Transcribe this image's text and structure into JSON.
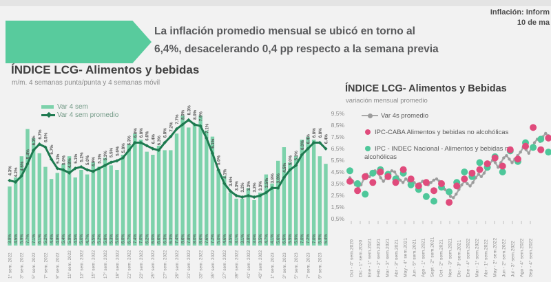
{
  "header": {
    "top_right_line1": "Inflación: Inform",
    "top_right_line2": "10 de ma"
  },
  "banner": {
    "headline_line1": "La inflación promedio mensual se ubicó en torno al",
    "headline_line2": "6,4%, desacelerando 0,4 pp respecto a la semana previa",
    "arrow_color": "#58cb9d"
  },
  "colors": {
    "background": "#f2f2f2",
    "mint_bar": "#7dd2ab",
    "dark_green_line": "#1e7a50",
    "gray_line": "#a9a9a9",
    "pink_dot": "#e04b7c",
    "green_dot": "#4ec79a"
  },
  "chart_data": [
    {
      "type": "bar",
      "title": "ÍNDICE LCG- Alimentos y bebidas",
      "subtitle": "m/m. 4 semanas punta/punta y 4 semanas móvil",
      "legend_position": "top-left",
      "grid": false,
      "ylim": [
        0,
        9
      ],
      "x_tick_every": 2,
      "x_tick_labels": [
        "1° sem. 2022",
        "3° sem. 2022",
        "5° sem. 2022",
        "7° sem. 2022",
        "9° sem. 2022",
        "11° sem. 2022",
        "13° sem. 2022",
        "15° sem. 2022",
        "17° sem. 2022",
        "19° sem. 2022",
        "21° sem. 2022",
        "23° sem. 2022",
        "25° sem. 2022",
        "27° sem. 2022",
        "29° sem. 2022",
        "31° sem. 2022",
        "33° sem. 2022",
        "35° sem. 2022",
        "37° sem. 2022",
        "39° sem. 2022",
        "41° sem. 2022",
        "43° sem. 2022",
        "1° sem. 2023",
        "3° sem. 2023",
        "5° sem. 2023",
        "7° sem. 2023",
        "9° sem. 2023"
      ],
      "series": [
        {
          "name": "Var 4 sem",
          "type": "bar",
          "color": "#7dd2ab",
          "values": [
            3.9,
            4.5,
            5.9,
            7.7,
            7.1,
            6.1,
            5.2,
            4.4,
            4.8,
            5.4,
            5.9,
            4.5,
            5.0,
            4.7,
            5.5,
            5.2,
            5.8,
            5.3,
            5.0,
            6.0,
            6.7,
            7.4,
            7.0,
            6.2,
            6.0,
            6.6,
            6.3,
            6.3,
            7.4,
            8.6,
            7.8,
            8.0,
            8.6,
            7.6,
            7.2,
            5.0,
            4.6,
            3.5,
            3.1,
            3.1,
            3.8,
            3.0,
            3.5,
            4.7,
            4.1,
            5.6,
            6.5,
            5.5,
            5.9,
            7.0,
            7.2,
            7.0,
            5.9,
            5.4
          ]
        },
        {
          "name": "Var 4 sem promedio",
          "type": "line",
          "color": "#1e7a50",
          "values": [
            4.3,
            4.2,
            4.6,
            5.4,
            6.3,
            6.7,
            6.5,
            5.7,
            5.1,
            5.0,
            4.8,
            5.1,
            5.2,
            5.0,
            4.9,
            5.1,
            5.3,
            5.5,
            5.6,
            5.8,
            6.3,
            6.8,
            6.8,
            6.6,
            6.4,
            6.3,
            6.8,
            7.2,
            7.7,
            8.0,
            8.3,
            8.0,
            7.9,
            7.1,
            6.1,
            5.0,
            4.1,
            3.6,
            3.3,
            3.2,
            3.3,
            3.2,
            3.3,
            3.5,
            3.8,
            3.8,
            4.5,
            5.0,
            5.3,
            6.0,
            6.4,
            6.8,
            6.8,
            6.4
          ]
        }
      ]
    },
    {
      "type": "scatter",
      "title": "ÍNDICE LCG- Alimentos y Bebidas",
      "subtitle": "variación mensual promedio",
      "legend_position": "top-left",
      "grid": false,
      "ylim": [
        0.5,
        9.5
      ],
      "y_ticks": [
        "9,5%",
        "8,5%",
        "7,5%",
        "6,5%",
        "5,5%",
        "4,5%",
        "3,5%",
        "2,5%",
        "1,5%",
        "0,5%"
      ],
      "x_tick_labels": [
        "Oct - 4° sem.2020",
        "Dic - 1° sem.2020",
        "Ene - 1° sem.2021",
        "Feb - 2° sem.2021",
        "Mar - 3° sem.2021",
        "Abr - 3° sem.2021",
        "May - 4° sem.2021",
        "Jun - 5° sem.2021",
        "Ago - 1° sem.2021",
        "Sept - 2° sem.2021",
        "Oct - 2° sem.2021",
        "Nov - 3° sem.2021",
        "Dic - 3° sem.2021",
        "Ene - 4° sem.2022",
        "Mar - 1° sem.2022",
        "Abr - 1° sem.2022",
        "May - 2° sem.2022",
        "Jun - 2° sem.2022",
        "Jul - 3° sem.2022",
        "Ago - 4° sem.2022",
        "Sep - 4° sem.2022"
      ],
      "series": [
        {
          "name": "Var 4s promedio",
          "type": "line",
          "color": "#a9a9a9",
          "values": [
            4.0,
            3.7,
            3.4,
            3.2,
            3.4,
            3.9,
            4.3,
            4.1,
            4.4,
            4.6,
            4.4,
            4.0,
            3.7,
            4.0,
            4.4,
            4.6,
            4.5,
            4.1,
            3.8,
            3.6,
            3.9,
            3.7,
            3.5,
            3.6,
            3.4,
            3.5,
            3.7,
            3.6,
            3.4,
            3.6,
            3.8,
            3.9,
            3.7,
            3.4,
            3.0,
            2.7,
            2.4,
            2.3,
            2.6,
            3.0,
            3.4,
            3.7,
            3.5,
            3.3,
            3.6,
            4.0,
            4.3,
            4.1,
            4.4,
            4.8,
            5.2,
            5.5,
            5.3,
            4.9,
            5.3,
            5.7,
            5.9,
            5.6,
            5.3,
            5.6,
            5.9,
            6.2,
            6.6,
            6.4,
            6.1,
            6.6,
            7.0,
            7.3,
            7.1,
            7.5,
            7.8,
            7.6
          ]
        },
        {
          "name": "IPC-CABA Alimentos y bebidas no alcohólicas",
          "type": "scatter",
          "color": "#e04b7c",
          "values": [
            3.7,
            2.9,
            4.1,
            3.6,
            4.5,
            4.1,
            3.6,
            4.7,
            3.9,
            3.3,
            3.6,
            2.9,
            3.5,
            1.9,
            3.3,
            3.9,
            4.4,
            4.7,
            5.2,
            5.7,
            5.0,
            6.4,
            5.6,
            6.7,
            8.3,
            6.4,
            7.4
          ]
        },
        {
          "name": "IPC - INDEC Nacional - Alimentos y bebidas no alcohólicas",
          "type": "scatter",
          "color": "#4ec79a",
          "values": [
            4.6,
            3.5,
            2.6,
            4.4,
            4.7,
            4.3,
            3.9,
            4.4,
            3.4,
            3.0,
            2.4,
            2.0,
            3.2,
            2.8,
            3.6,
            4.5,
            4.1,
            5.3,
            4.9,
            5.8,
            4.5,
            6.3,
            5.4,
            7.0,
            6.6,
            7.3,
            6.2
          ]
        }
      ]
    }
  ]
}
